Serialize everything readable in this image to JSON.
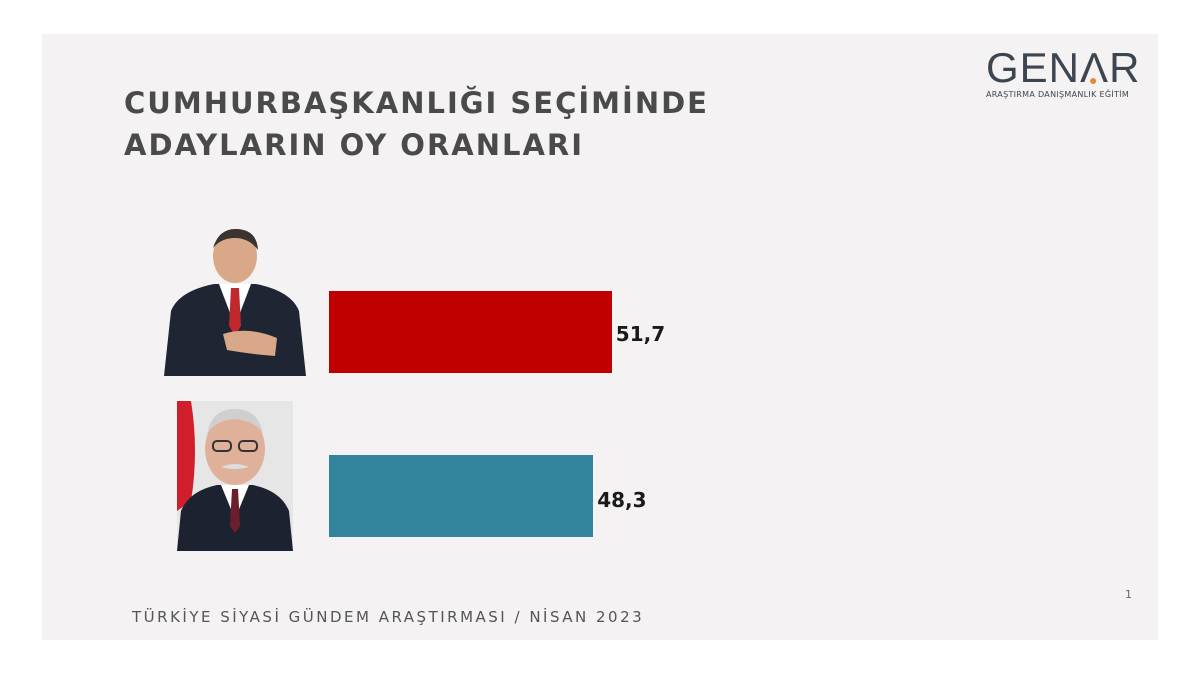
{
  "title": {
    "line1": "CUMHURBAŞKANLIĞI SEÇİMİNDE",
    "line2": "ADAYLARIN OY  ORANLARI"
  },
  "logo": {
    "text": "GENAR",
    "subtitle": "ARAŞTIRMA DANIŞMANLIK EĞİTİM",
    "accent_color": "#e8893a"
  },
  "chart_data": {
    "type": "bar",
    "orientation": "horizontal",
    "categories": [
      "candidate-1-photo",
      "candidate-2-photo"
    ],
    "values": [
      51.7,
      48.3
    ],
    "value_labels": [
      "51,7",
      "48,3"
    ],
    "colors": [
      "#c00000",
      "#31849b"
    ],
    "xlim": [
      0,
      100
    ],
    "grid": false
  },
  "footer": {
    "text": "TÜRKİYE SİYASİ GÜNDEM ARAŞTIRMASI  / NİSAN 2023",
    "page": "1"
  }
}
